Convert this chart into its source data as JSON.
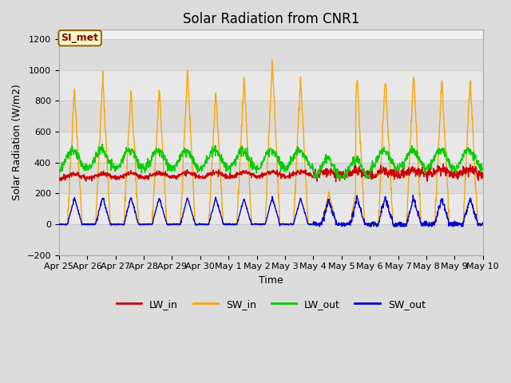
{
  "title": "Solar Radiation from CNR1",
  "xlabel": "Time",
  "ylabel": "Solar Radiation (W/m2)",
  "ylim": [
    -200,
    1260
  ],
  "yticks": [
    -200,
    0,
    200,
    400,
    600,
    800,
    1000,
    1200
  ],
  "annotation_text": "SI_met",
  "annotation_color": "#8B0000",
  "annotation_bg": "#FFFFCC",
  "annotation_border": "#8B6914",
  "colors": {
    "LW_in": "#CC0000",
    "SW_in": "#FFA500",
    "LW_out": "#00CC00",
    "SW_out": "#0000CC"
  },
  "bg_color": "#DCDCDC",
  "plot_bg": "#F0F0F0",
  "band_colors": [
    "#E8E8E8",
    "#D8D8D8"
  ],
  "grid_color": "#CCCCCC",
  "title_fontsize": 12,
  "tick_fontsize": 8,
  "label_fontsize": 9,
  "legend_fontsize": 9,
  "date_labels": [
    "Apr 25",
    "Apr 26",
    "Apr 27",
    "Apr 28",
    "Apr 29",
    "Apr 30",
    "May 1",
    "May 2",
    "May 3",
    "May 4",
    "May 5",
    "May 6",
    "May 7",
    "May 8",
    "May 9",
    "May 10"
  ]
}
